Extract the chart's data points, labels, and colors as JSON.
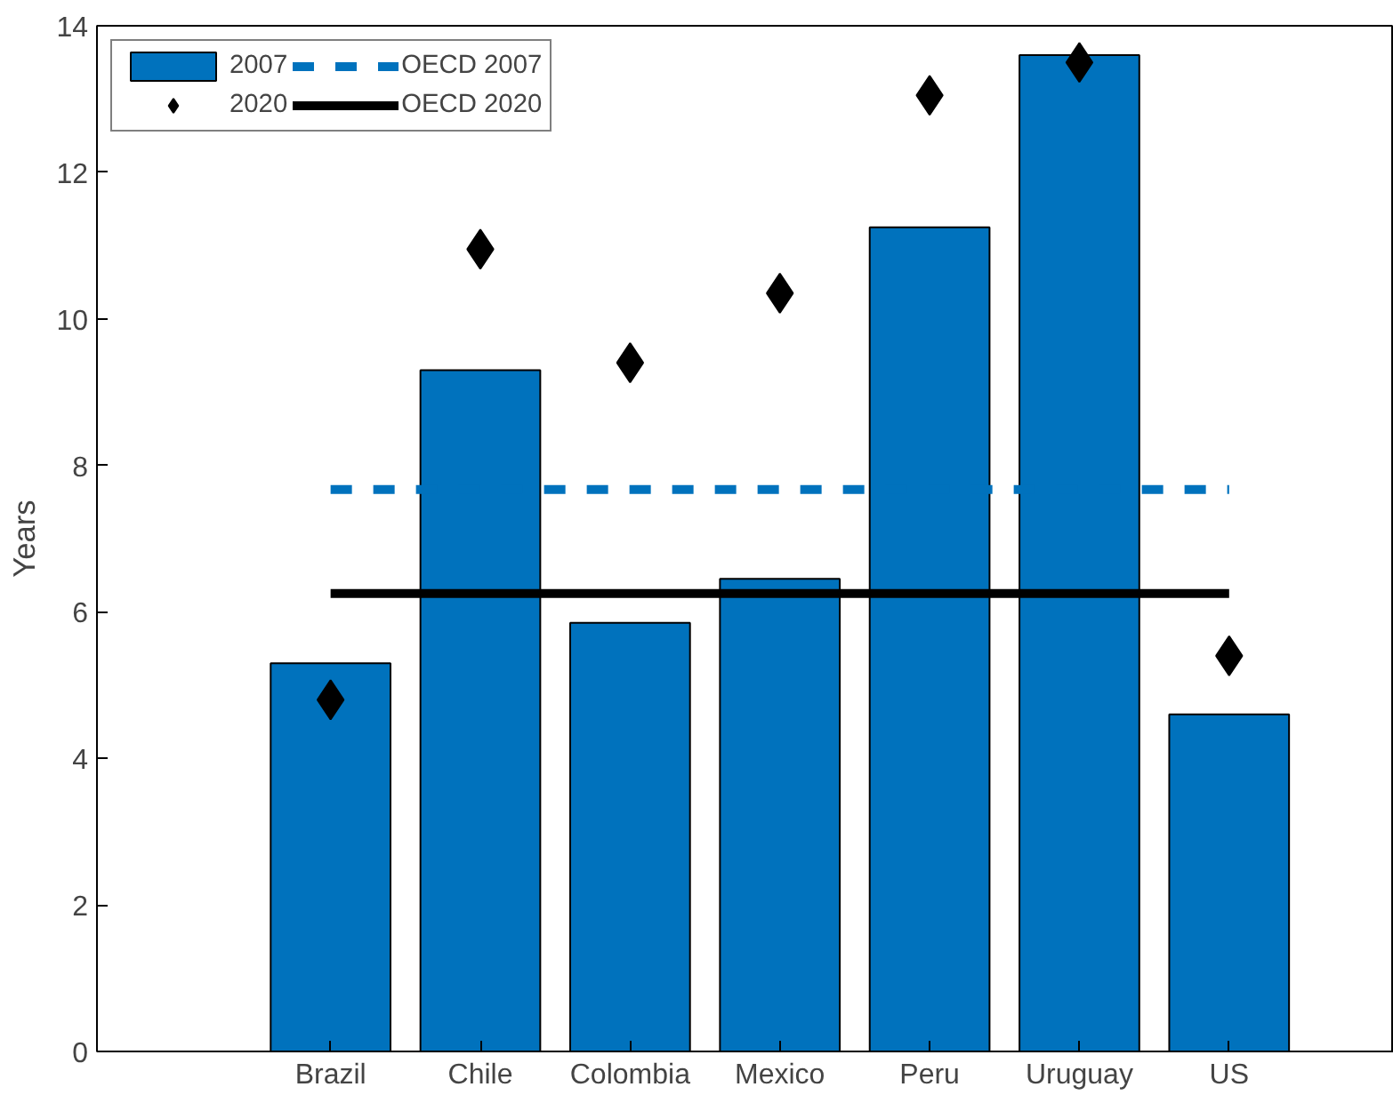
{
  "chart_data": {
    "type": "bar",
    "ylabel": "Years",
    "categories": [
      "Brazil",
      "Chile",
      "Colombia",
      "Mexico",
      "Peru",
      "Uruguay",
      "US"
    ],
    "series": [
      {
        "name": "2007",
        "color": "#0072bd",
        "values": [
          5.3,
          9.3,
          5.85,
          6.45,
          11.25,
          13.6,
          4.6
        ]
      },
      {
        "name": "2020",
        "type": "scatter",
        "marker": "diamond",
        "color": "#000000",
        "values": [
          4.8,
          10.95,
          9.4,
          10.35,
          13.05,
          13.5,
          5.4
        ]
      }
    ],
    "ref_lines": [
      {
        "axis": "y",
        "value": 7.67,
        "label": "OECD 2007",
        "color": "#0072bd",
        "line_style": "dashed"
      },
      {
        "axis": "y",
        "value": 6.25,
        "label": "OECD 2020",
        "color": "#000000",
        "line_style": "solid"
      }
    ],
    "ylim": [
      0,
      14
    ],
    "yticks": [
      0,
      2,
      4,
      6,
      8,
      10,
      12,
      14
    ],
    "grid": false,
    "legend": "top left"
  }
}
